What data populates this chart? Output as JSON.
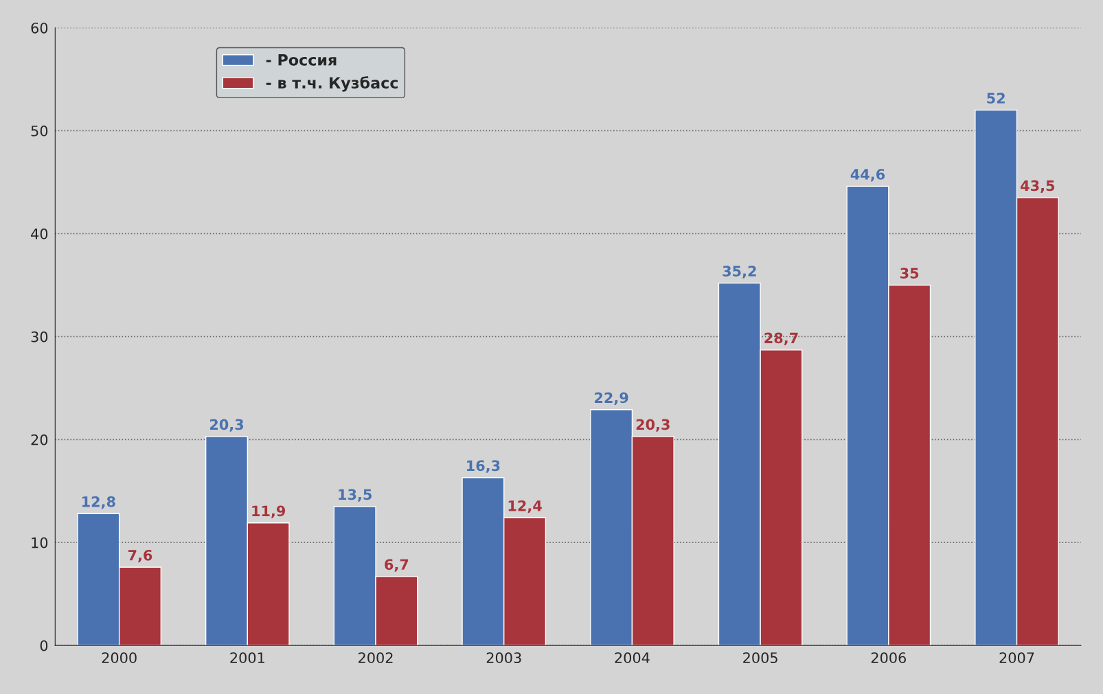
{
  "chart_data": {
    "type": "bar",
    "categories": [
      "2000",
      "2001",
      "2002",
      "2003",
      "2004",
      "2005",
      "2006",
      "2007"
    ],
    "series": [
      {
        "name": "- Россия",
        "color": "#4a72b0",
        "values": [
          12.8,
          20.3,
          13.5,
          16.3,
          22.9,
          35.2,
          44.6,
          52
        ],
        "value_labels": [
          "12,8",
          "20,3",
          "13,5",
          "16,3",
          "22,9",
          "35,2",
          "44,6",
          "52"
        ]
      },
      {
        "name": "- в т.ч. Кузбасс",
        "color": "#a8343c",
        "values": [
          7.6,
          11.9,
          6.7,
          12.4,
          20.3,
          28.7,
          35,
          43.5
        ],
        "value_labels": [
          "7,6",
          "11,9",
          "6,7",
          "12,4",
          "20,3",
          "28,7",
          "35",
          "43,5"
        ]
      }
    ],
    "ylim": [
      0,
      60
    ],
    "yticks": [
      0,
      10,
      20,
      30,
      40,
      50,
      60
    ],
    "grid": "y",
    "legend": "top left"
  }
}
